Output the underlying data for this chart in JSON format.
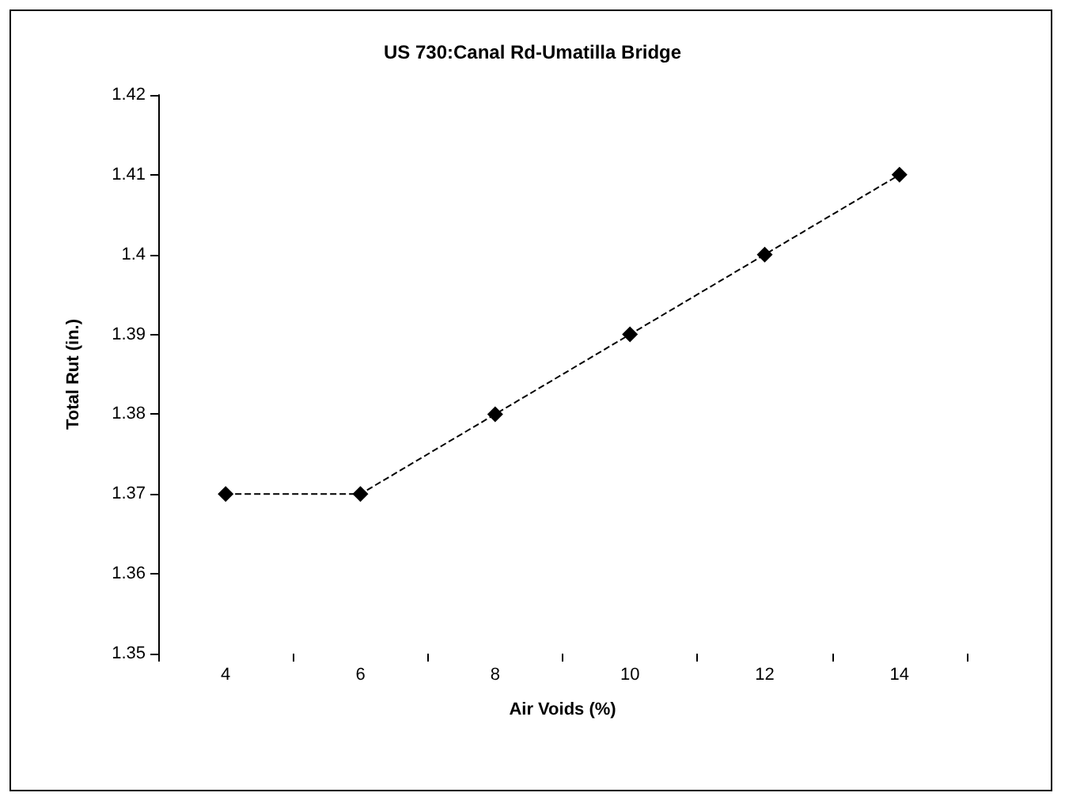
{
  "chart_data": {
    "type": "line",
    "title": "US 730:Canal Rd-Umatilla Bridge",
    "xlabel": "Air Voids (%)",
    "ylabel": "Total Rut (in.)",
    "categories": [
      "4",
      "6",
      "8",
      "10",
      "12",
      "14"
    ],
    "series": [
      {
        "color": "#000000",
        "values": [
          1.37,
          1.37,
          1.38,
          1.39,
          1.4,
          1.41
        ]
      }
    ],
    "ylim": [
      1.35,
      1.42
    ],
    "yticks": [
      1.35,
      1.36,
      1.37,
      1.38,
      1.39,
      1.4,
      1.41,
      1.42
    ],
    "grid": false,
    "marker": "diamond",
    "line_style": "dashed"
  }
}
